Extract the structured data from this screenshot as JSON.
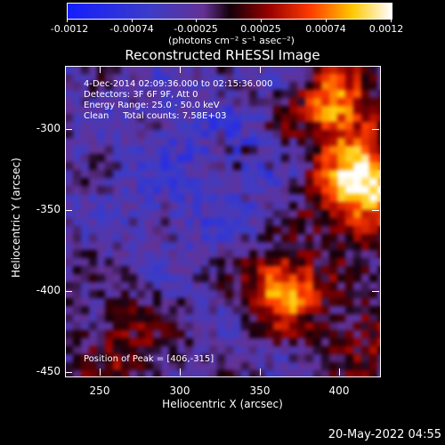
{
  "colorbar": {
    "tick_labels": [
      "-0.0012",
      "-0.00074",
      "-0.00025",
      "0.00025",
      "0.00074",
      "0.0012"
    ],
    "units": "(photons cm⁻² s⁻¹ asec⁻²)"
  },
  "title": "Reconstructed RHESSI Image",
  "info": {
    "time": "4-Dec-2014 02:09:36.000 to 02:15:36.000",
    "detectors": "Detectors: 3F 6F 9F, Att 0",
    "energy": "Energy Range: 25.0 - 50.0 keV",
    "clean": "Clean     Total counts: 7.58E+03",
    "peak": "Position of Peak = [406,-315]"
  },
  "axes": {
    "xlabel": "Heliocentric X (arcsec)",
    "ylabel": "Heliocentric Y (arcsec)",
    "xticks": [
      "250",
      "300",
      "350",
      "400"
    ],
    "yticks": [
      "-300",
      "-350",
      "-400",
      "-450"
    ]
  },
  "datestamp": "20-May-2022 04:55"
}
